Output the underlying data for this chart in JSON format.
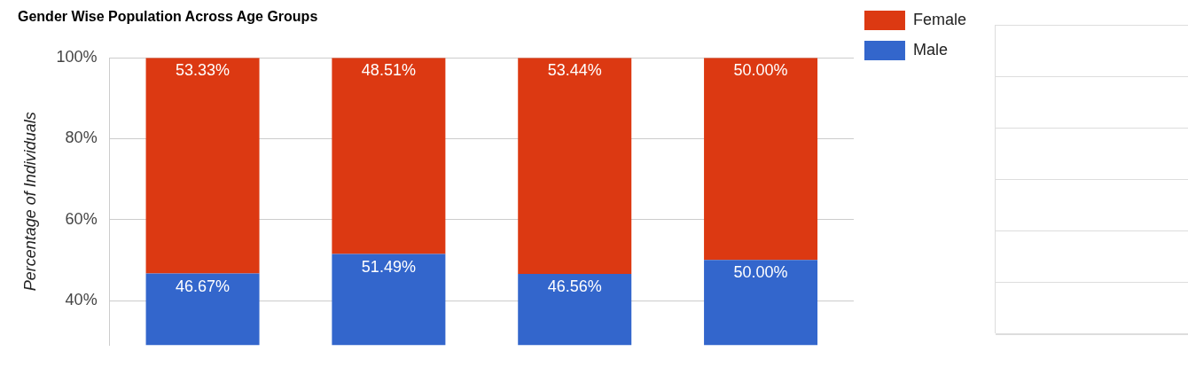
{
  "chart_data": {
    "type": "bar",
    "title": "Gender Wise Population Across Age Groups",
    "ylabel": "Percentage of Individuals",
    "categories": [
      null,
      null,
      null,
      null
    ],
    "stacked": true,
    "series": [
      {
        "name": "Male",
        "color": "#3366cc",
        "values": [
          46.67,
          51.49,
          46.56,
          50.0
        ]
      },
      {
        "name": "Female",
        "color": "#dc3912",
        "values": [
          53.33,
          48.51,
          53.44,
          50.0
        ]
      }
    ],
    "value_labels": [
      [
        "46.67%",
        "51.49%",
        "46.56%",
        "50.00%"
      ],
      [
        "53.33%",
        "48.51%",
        "53.44%",
        "50.00%"
      ]
    ],
    "ylim": [
      29,
      100
    ],
    "yticks": [
      {
        "value": 40,
        "label": "40%"
      },
      {
        "value": 60,
        "label": "60%"
      },
      {
        "value": 80,
        "label": "80%"
      },
      {
        "value": 100,
        "label": "100%"
      }
    ],
    "grid": "y",
    "legend": "top right"
  }
}
